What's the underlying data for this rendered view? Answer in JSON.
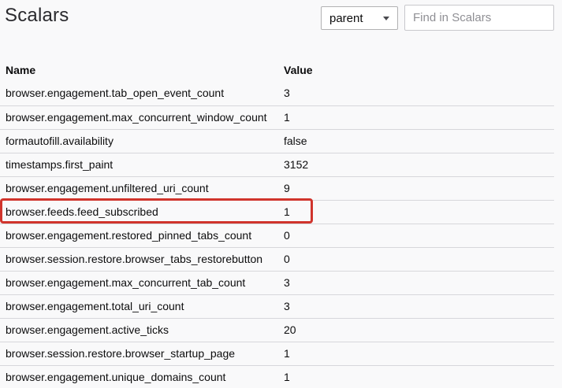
{
  "page": {
    "title": "Scalars"
  },
  "controls": {
    "process_select": {
      "selected": "parent"
    },
    "search": {
      "placeholder": "Find in Scalars"
    }
  },
  "table": {
    "columns": [
      "Name",
      "Value"
    ],
    "rows": [
      {
        "name": "browser.engagement.tab_open_event_count",
        "value": "3"
      },
      {
        "name": "browser.engagement.max_concurrent_window_count",
        "value": "1"
      },
      {
        "name": "formautofill.availability",
        "value": "false"
      },
      {
        "name": "timestamps.first_paint",
        "value": "3152"
      },
      {
        "name": "browser.engagement.unfiltered_uri_count",
        "value": "9"
      },
      {
        "name": "browser.feeds.feed_subscribed",
        "value": "1"
      },
      {
        "name": "browser.engagement.restored_pinned_tabs_count",
        "value": "0"
      },
      {
        "name": "browser.session.restore.browser_tabs_restorebutton",
        "value": "0"
      },
      {
        "name": "browser.engagement.max_concurrent_tab_count",
        "value": "3"
      },
      {
        "name": "browser.engagement.total_uri_count",
        "value": "3"
      },
      {
        "name": "browser.engagement.active_ticks",
        "value": "20"
      },
      {
        "name": "browser.session.restore.browser_startup_page",
        "value": "1"
      },
      {
        "name": "browser.engagement.unique_domains_count",
        "value": "1"
      }
    ],
    "highlighted_name": "browser.feeds.feed_subscribed"
  },
  "colors": {
    "highlight_border": "#d0342c",
    "background": "#f9f9fa",
    "row_border": "#d7d7db"
  }
}
